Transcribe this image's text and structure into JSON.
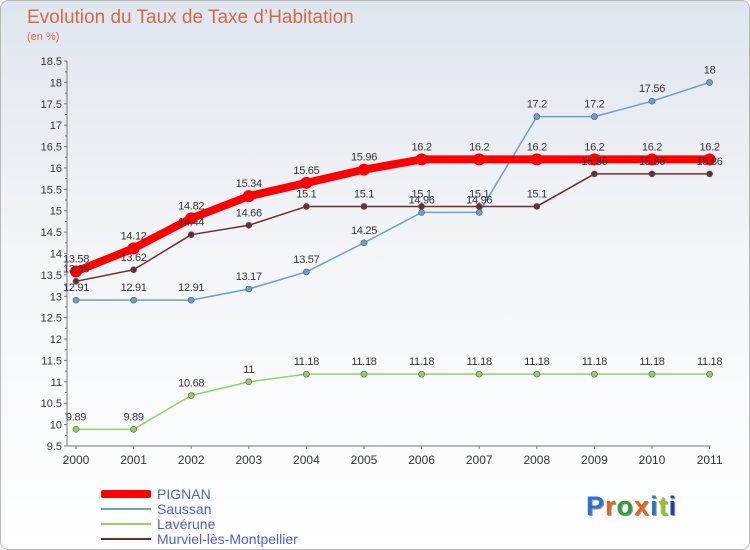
{
  "page": {
    "title": "Evolution du Taux de Taxe d’Habitation",
    "unit_label": "(en %)"
  },
  "logo": {
    "text": "Proxiti",
    "letter_colors": [
      "#2f6fd0",
      "#e8641e",
      "#2f9f3a",
      "#e8641e",
      "#2f6fd0",
      "#9bc31f",
      "#1c3fa8"
    ]
  },
  "chart_data": {
    "type": "line",
    "title": "Evolution du Taux de Taxe d’Habitation",
    "ylabel": "(en %)",
    "xlabel": "",
    "x": [
      "2000",
      "2001",
      "2002",
      "2003",
      "2004",
      "2005",
      "2006",
      "2007",
      "2008",
      "2009",
      "2010",
      "2011"
    ],
    "ylim": [
      9.5,
      18.5
    ],
    "yticks": [
      "9.5",
      "10",
      "10.5",
      "11",
      "11.5",
      "12",
      "12.5",
      "13",
      "13.5",
      "14",
      "14.5",
      "15",
      "15.5",
      "16",
      "16.5",
      "17",
      "17.5",
      "18",
      "18.5"
    ],
    "grid": false,
    "legend_position": "bottom-left",
    "series": [
      {
        "name": "PIGNAN",
        "color": "#ff0000",
        "values": [
          13.58,
          14.12,
          14.82,
          15.34,
          15.65,
          15.96,
          16.2,
          16.2,
          16.2,
          16.2,
          16.2,
          16.2
        ],
        "labels": [
          "13.58",
          "14.12",
          "14.82",
          "15.34",
          "15.65",
          "15.96",
          "16.2",
          "16.2",
          "16.2",
          "16.2",
          "16.2",
          "16.2"
        ]
      },
      {
        "name": "Saussan",
        "color": "#6a9fd0",
        "values": [
          12.91,
          12.91,
          12.91,
          13.17,
          13.57,
          14.25,
          14.96,
          14.96,
          17.2,
          17.2,
          17.56,
          18
        ],
        "labels": [
          "12.91",
          "12.91",
          "12.91",
          "13.17",
          "13.57",
          "14.25",
          "14.96",
          "14.96",
          "17.2",
          "17.2",
          "17.56",
          "18"
        ]
      },
      {
        "name": "Lavérune",
        "color": "#96d064",
        "values": [
          9.89,
          9.89,
          10.68,
          11,
          11.18,
          11.18,
          11.18,
          11.18,
          11.18,
          11.18,
          11.18,
          11.18
        ],
        "labels": [
          "9.89",
          "9.89",
          "10.68",
          "11",
          "11.18",
          "11.18",
          "11.18",
          "11.18",
          "11.18",
          "11.18",
          "11.18",
          "11.18"
        ]
      },
      {
        "name": "Murviel-lès-Montpellier",
        "color": "#6e2c2c",
        "values": [
          13.35,
          13.62,
          14.44,
          14.66,
          15.1,
          15.1,
          15.1,
          15.1,
          15.1,
          15.86,
          15.86,
          15.86
        ],
        "labels": [
          "13.35",
          "13.62",
          "14.44",
          "14.66",
          "15.1",
          "15.1",
          "15.1",
          "15.1",
          "15.1",
          "15.86",
          "15.86",
          "15.86"
        ]
      }
    ]
  }
}
